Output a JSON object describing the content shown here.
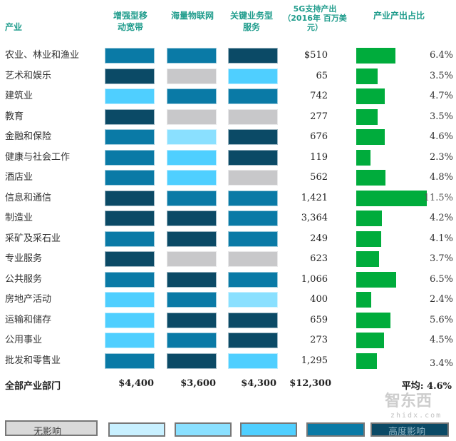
{
  "chart_data": {
    "type": "table",
    "headers": {
      "industry": "产业",
      "embb": "增强型移动宽带",
      "miot": "海量物联网",
      "critical": "关键业务型服务",
      "output": "5G支持产出（2016年 百万美元）",
      "share": "产业产出占比"
    },
    "impact_scale": {
      "levels": [
        "无影响",
        "",
        "",
        "",
        "",
        "高度影响"
      ],
      "colors": [
        "#c8c8ca",
        "#c8f0ff",
        "#8ae0ff",
        "#4fcfff",
        "#0a7aa6",
        "#0b4a66"
      ]
    },
    "rows": [
      {
        "industry": "农业、林业和渔业",
        "impact": [
          4,
          4,
          5
        ],
        "output": "$510",
        "share": 6.4,
        "share_label": "6.4%"
      },
      {
        "industry": "艺术和娱乐",
        "impact": [
          5,
          0,
          3
        ],
        "output": "65",
        "share": 3.5,
        "share_label": "3.5%"
      },
      {
        "industry": "建筑业",
        "impact": [
          3,
          4,
          4
        ],
        "output": "742",
        "share": 4.7,
        "share_label": "4.7%"
      },
      {
        "industry": "教育",
        "impact": [
          5,
          0,
          0
        ],
        "output": "277",
        "share": 3.5,
        "share_label": "3.5%"
      },
      {
        "industry": "金融和保险",
        "impact": [
          4,
          2,
          5
        ],
        "output": "676",
        "share": 4.6,
        "share_label": "4.6%"
      },
      {
        "industry": "健康与社会工作",
        "impact": [
          4,
          3,
          5
        ],
        "output": "119",
        "share": 2.3,
        "share_label": "2.3%"
      },
      {
        "industry": "酒店业",
        "impact": [
          4,
          3,
          0
        ],
        "output": "562",
        "share": 4.8,
        "share_label": "4.8%"
      },
      {
        "industry": "信息和通信",
        "impact": [
          5,
          4,
          4
        ],
        "output": "1,421",
        "share": 11.5,
        "share_label": "11.5%"
      },
      {
        "industry": "制造业",
        "impact": [
          5,
          5,
          4
        ],
        "output": "3,364",
        "share": 4.2,
        "share_label": "4.2%"
      },
      {
        "industry": "采矿及采石业",
        "impact": [
          4,
          5,
          4
        ],
        "output": "249",
        "share": 4.1,
        "share_label": "4.1%"
      },
      {
        "industry": "专业服务",
        "impact": [
          5,
          0,
          0
        ],
        "output": "623",
        "share": 3.7,
        "share_label": "3.7%"
      },
      {
        "industry": "公共服务",
        "impact": [
          4,
          5,
          4
        ],
        "output": "1,066",
        "share": 6.5,
        "share_label": "6.5%"
      },
      {
        "industry": "房地产活动",
        "impact": [
          3,
          4,
          2
        ],
        "output": "400",
        "share": 2.4,
        "share_label": "2.4%"
      },
      {
        "industry": "运输和储存",
        "impact": [
          3,
          5,
          5
        ],
        "output": "659",
        "share": 5.6,
        "share_label": "5.6%"
      },
      {
        "industry": "公用事业",
        "impact": [
          3,
          4,
          5
        ],
        "output": "273",
        "share": 4.5,
        "share_label": "4.5%"
      },
      {
        "industry": "批发和零售业",
        "impact": [
          4,
          5,
          3
        ],
        "output": "1,295",
        "share": 3.4,
        "share_label": "3.4%"
      }
    ],
    "totals": {
      "label": "全部产业部门",
      "embb": "$4,400",
      "miot": "$3,600",
      "critical": "$4,300",
      "output": "$12,300",
      "average": "平均: 4.6%"
    },
    "bar_color": "#00ac3c"
  },
  "watermark": "智东西 zhidx.com"
}
